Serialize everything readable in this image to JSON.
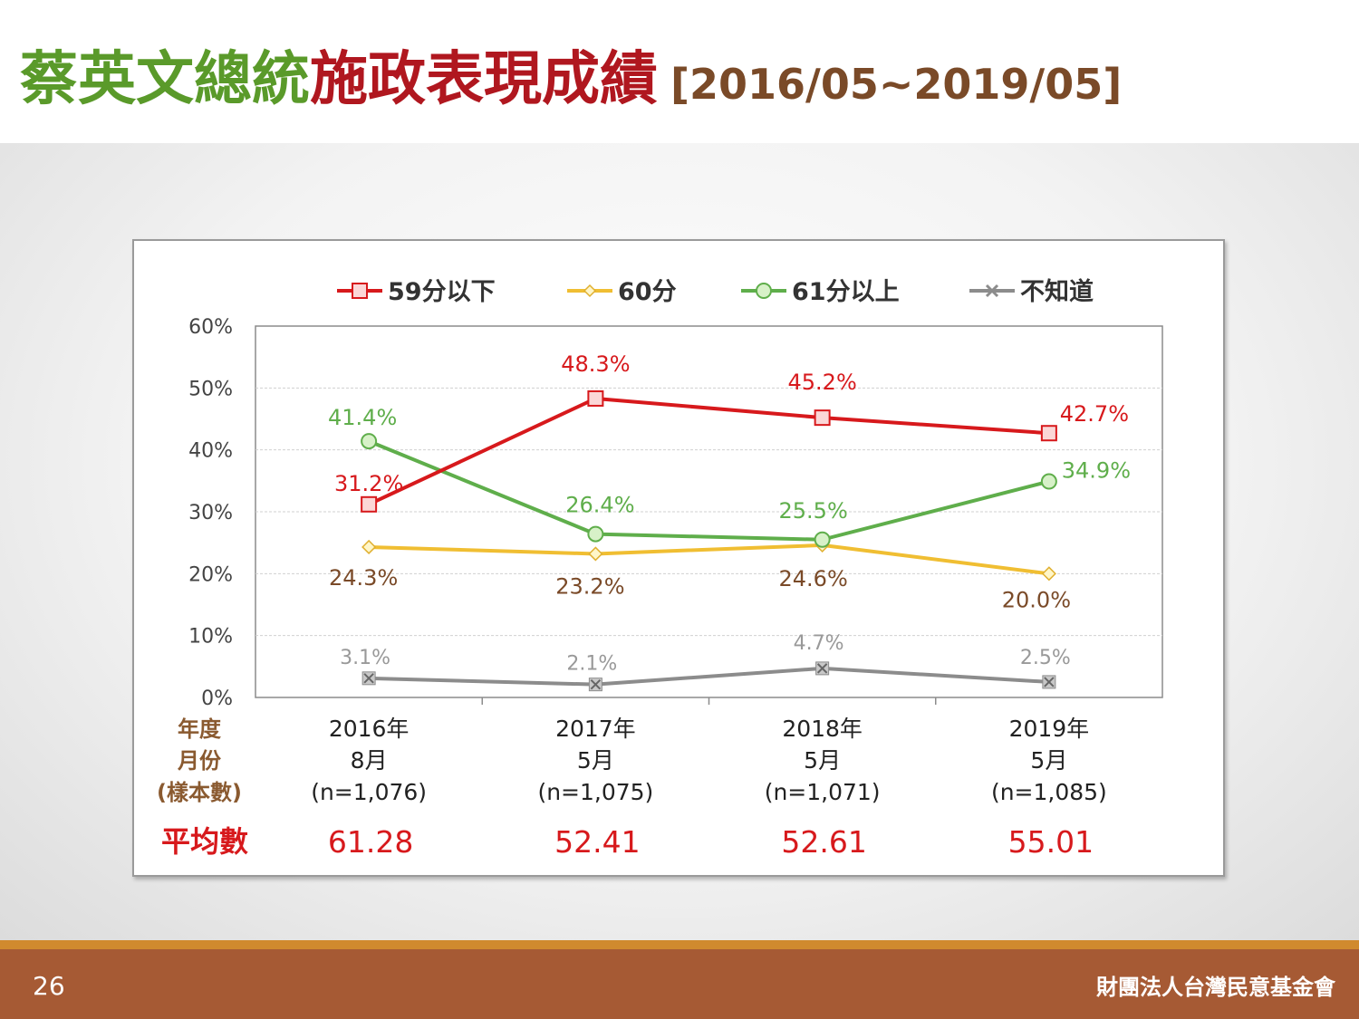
{
  "slide": {
    "title_part1": "蔡英文總統",
    "title_part2": "施政表現成績",
    "title_range": "[2016/05~2019/05]",
    "page_number": "26",
    "organization": "財團法人台灣民意基金會"
  },
  "chart_data": {
    "type": "line",
    "categories": [
      {
        "year": "2016年",
        "month": "8月",
        "n": "(n=1,076)",
        "average": "61.28"
      },
      {
        "year": "2017年",
        "month": "5月",
        "n": "(n=1,075)",
        "average": "52.41"
      },
      {
        "year": "2018年",
        "month": "5月",
        "n": "(n=1,071)",
        "average": "52.61"
      },
      {
        "year": "2019年",
        "month": "5月",
        "n": "(n=1,085)",
        "average": "55.01"
      }
    ],
    "row_labels": {
      "year": "年度",
      "month": "月份",
      "n": "(樣本數)",
      "average": "平均數"
    },
    "ylim": [
      0,
      60
    ],
    "yticks": [
      "0%",
      "10%",
      "20%",
      "30%",
      "40%",
      "50%",
      "60%"
    ],
    "series": [
      {
        "name": "59分以下",
        "values": [
          31.2,
          48.3,
          45.2,
          42.7
        ],
        "labels": [
          "31.2%",
          "48.3%",
          "45.2%",
          "42.7%"
        ],
        "color": "#d7191c",
        "label_color": "#d7191c",
        "marker": "square"
      },
      {
        "name": "60分",
        "values": [
          24.3,
          23.2,
          24.6,
          20.0
        ],
        "labels": [
          "24.3%",
          "23.2%",
          "24.6%",
          "20.0%"
        ],
        "color": "#f0be32",
        "label_color": "#7a4a28",
        "marker": "diamond"
      },
      {
        "name": "61分以上",
        "values": [
          41.4,
          26.4,
          25.5,
          34.9
        ],
        "labels": [
          "41.4%",
          "26.4%",
          "25.5%",
          "34.9%"
        ],
        "color": "#5fae4b",
        "label_color": "#5fae4b",
        "marker": "circle"
      },
      {
        "name": "不知道",
        "values": [
          3.1,
          2.1,
          4.7,
          2.5
        ],
        "labels": [
          "3.1%",
          "2.1%",
          "4.7%",
          "2.5%"
        ],
        "color": "#8c8c8c",
        "label_color": "#999999",
        "marker": "x"
      }
    ],
    "grid": true,
    "legend_position": "top"
  }
}
